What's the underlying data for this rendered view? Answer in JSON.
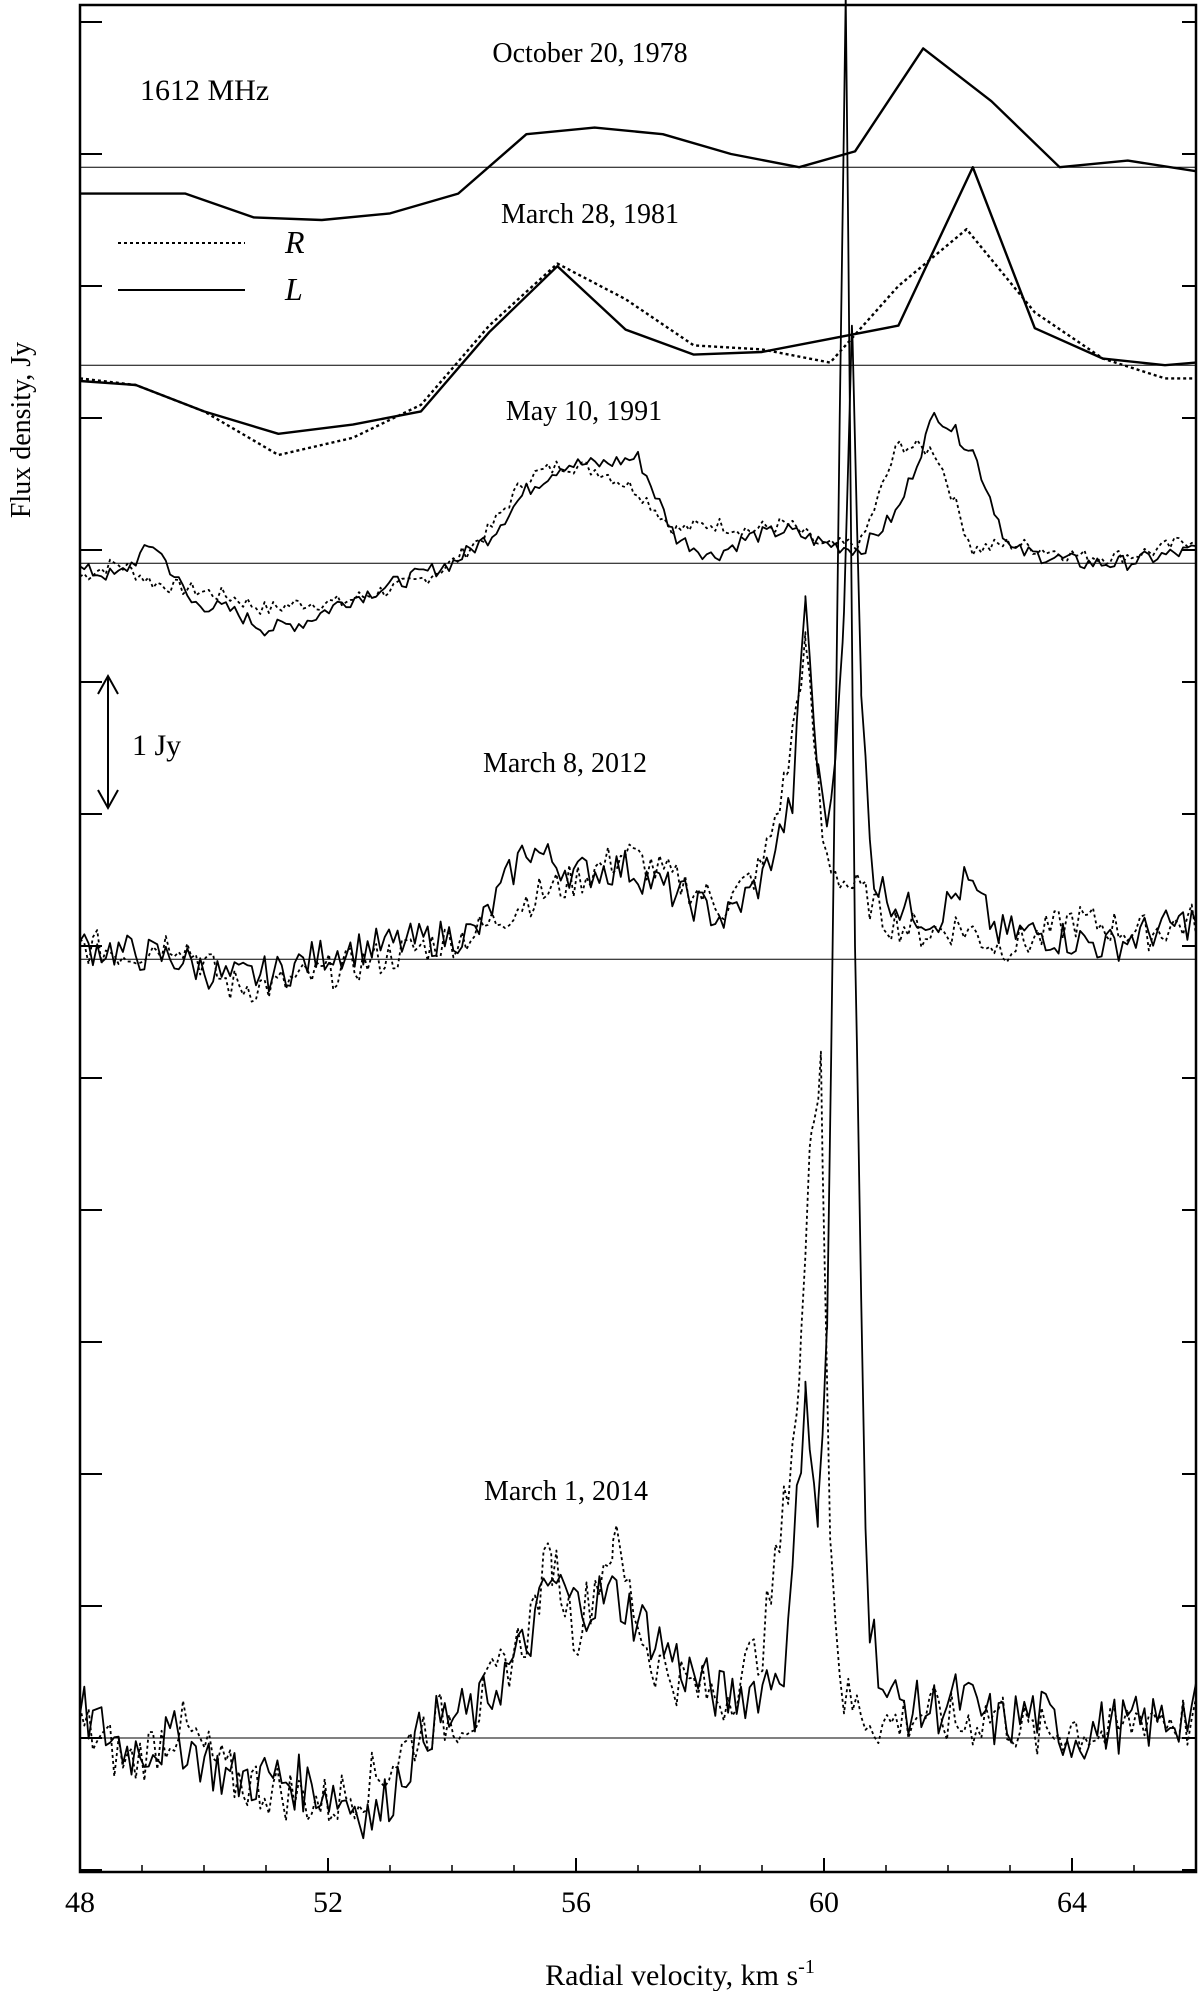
{
  "chart_data": {
    "type": "line",
    "frequency_label": "1612 MHz",
    "xlabel": "Radial velocity, km s",
    "xlabel_sup": "-1",
    "ylabel": "Flux density, Jy",
    "xlim": [
      48,
      66
    ],
    "xticks": [
      48,
      52,
      56,
      60,
      64
    ],
    "y_spacing_jy": 1,
    "scale_bar_label": "1 Jy",
    "legend": [
      {
        "name": "R",
        "style": "dotted"
      },
      {
        "name": "L",
        "style": "solid"
      }
    ],
    "epochs": [
      {
        "label": "October 20, 1978",
        "baseline_offset_jy": 11.9,
        "series": [
          {
            "name": "L",
            "x": [
              48.0,
              48.6,
              49.7,
              50.8,
              51.9,
              53.0,
              54.1,
              55.2,
              56.3,
              57.4,
              58.5,
              59.6,
              60.5,
              61.6,
              62.7,
              63.8,
              64.9,
              66.0
            ],
            "y": [
              -0.2,
              -0.2,
              -0.2,
              -0.38,
              -0.4,
              -0.35,
              -0.2,
              0.25,
              0.3,
              0.25,
              0.1,
              0.0,
              0.12,
              0.9,
              0.5,
              0.0,
              0.05,
              -0.03
            ]
          }
        ]
      },
      {
        "label": "March 28, 1981",
        "baseline_offset_jy": 10.4,
        "series": [
          {
            "name": "R",
            "x": [
              48.0,
              48.9,
              50.0,
              51.2,
              52.4,
              53.5,
              54.6,
              55.7,
              56.8,
              57.9,
              59.0,
              60.1,
              61.2,
              62.3,
              63.4,
              64.5,
              65.5,
              66.0
            ],
            "y": [
              -0.1,
              -0.15,
              -0.35,
              -0.68,
              -0.55,
              -0.3,
              0.3,
              0.77,
              0.5,
              0.15,
              0.12,
              0.02,
              0.6,
              1.03,
              0.4,
              0.05,
              -0.1,
              -0.1
            ]
          },
          {
            "name": "L",
            "x": [
              48.0,
              48.9,
              50.0,
              51.2,
              52.4,
              53.5,
              54.6,
              55.7,
              56.8,
              57.9,
              59.0,
              60.1,
              61.2,
              62.4,
              63.4,
              64.5,
              65.5,
              66.0
            ],
            "y": [
              -0.12,
              -0.15,
              -0.35,
              -0.52,
              -0.45,
              -0.35,
              0.25,
              0.75,
              0.27,
              0.08,
              0.1,
              0.2,
              0.3,
              1.5,
              0.28,
              0.05,
              0.0,
              0.02
            ]
          }
        ]
      },
      {
        "label": "May 10, 1991",
        "baseline_offset_jy": 8.9,
        "series": [
          {
            "name": "R",
            "x": [
              48.0,
              48.6,
              49.2,
              49.8,
              50.4,
              51.0,
              51.6,
              52.2,
              52.8,
              53.4,
              54.0,
              54.6,
              55.2,
              55.8,
              56.4,
              57.0,
              57.6,
              58.2,
              58.8,
              59.4,
              60.0,
              60.6,
              61.2,
              61.8,
              62.4,
              63.0,
              63.6,
              64.2,
              64.8,
              65.4,
              66.0
            ],
            "y": [
              -0.1,
              0.0,
              -0.15,
              -0.2,
              -0.25,
              -0.35,
              -0.3,
              -0.3,
              -0.22,
              -0.15,
              0.0,
              0.25,
              0.65,
              0.75,
              0.7,
              0.55,
              0.25,
              0.3,
              0.25,
              0.3,
              0.12,
              0.15,
              0.9,
              0.85,
              0.1,
              0.15,
              0.1,
              0.05,
              0.05,
              0.1,
              0.2
            ]
          },
          {
            "name": "L",
            "x": [
              48.0,
              48.6,
              49.2,
              49.8,
              50.4,
              51.0,
              51.6,
              52.2,
              52.8,
              53.4,
              54.0,
              54.6,
              55.2,
              55.8,
              56.4,
              57.0,
              57.6,
              58.2,
              58.8,
              59.4,
              60.0,
              60.6,
              61.2,
              61.8,
              62.4,
              63.0,
              63.6,
              64.2,
              64.8,
              65.4,
              66.0
            ],
            "y": [
              -0.05,
              -0.1,
              0.15,
              -0.3,
              -0.35,
              -0.5,
              -0.45,
              -0.3,
              -0.2,
              -0.1,
              0.0,
              0.2,
              0.55,
              0.75,
              0.75,
              0.8,
              0.2,
              0.05,
              0.2,
              0.25,
              0.15,
              0.1,
              0.4,
              1.15,
              0.85,
              0.1,
              0.05,
              0.0,
              0.0,
              0.05,
              0.1
            ]
          }
        ]
      },
      {
        "label": "March 8, 2012",
        "baseline_offset_jy": 5.9,
        "series": [
          {
            "name": "R",
            "x": [
              48.0,
              48.8,
              49.6,
              50.4,
              51.2,
              52.0,
              52.8,
              53.6,
              54.4,
              55.2,
              56.0,
              56.8,
              57.6,
              58.4,
              59.0,
              59.4,
              59.7,
              60.0,
              60.3,
              60.6,
              61.0,
              61.6,
              62.2,
              62.8,
              63.4,
              64.0,
              64.6,
              65.2,
              66.0
            ],
            "y": [
              0.1,
              0.05,
              0.15,
              -0.2,
              -0.2,
              -0.1,
              0.0,
              0.1,
              0.2,
              0.45,
              0.6,
              0.8,
              0.6,
              0.4,
              0.7,
              1.4,
              2.4,
              0.8,
              0.6,
              0.5,
              0.3,
              0.2,
              0.25,
              0.1,
              0.15,
              0.3,
              0.25,
              0.2,
              0.3
            ]
          },
          {
            "name": "L",
            "x": [
              48.0,
              48.8,
              49.6,
              50.4,
              51.2,
              52.0,
              52.8,
              53.6,
              54.4,
              55.2,
              56.0,
              56.8,
              57.6,
              58.4,
              59.0,
              59.5,
              59.7,
              59.9,
              60.1,
              60.3,
              60.45,
              60.6,
              60.8,
              61.2,
              61.8,
              62.3,
              62.8,
              63.4,
              64.0,
              64.6,
              65.2,
              66.0
            ],
            "y": [
              0.1,
              0.05,
              0.0,
              -0.15,
              -0.1,
              0.05,
              0.1,
              0.15,
              0.2,
              0.85,
              0.65,
              0.7,
              0.5,
              0.3,
              0.6,
              1.2,
              2.75,
              1.4,
              1.0,
              2.4,
              4.8,
              2.0,
              0.6,
              0.4,
              0.3,
              0.6,
              0.2,
              0.2,
              0.15,
              0.1,
              0.2,
              0.3
            ]
          }
        ]
      },
      {
        "label": "March 1, 2014",
        "baseline_offset_jy": 0.0,
        "series": [
          {
            "name": "R",
            "x": [
              48.0,
              48.8,
              49.6,
              50.4,
              51.2,
              52.0,
              52.8,
              53.6,
              54.4,
              55.2,
              55.6,
              56.0,
              56.6,
              57.2,
              57.8,
              58.4,
              59.0,
              59.3,
              59.6,
              59.8,
              59.95,
              60.1,
              60.3,
              60.6,
              61.0,
              61.6,
              62.2,
              62.8,
              63.4,
              64.0,
              64.6,
              65.2,
              66.0
            ],
            "y": [
              0.1,
              -0.2,
              0.1,
              -0.3,
              -0.4,
              -0.5,
              -0.3,
              0.1,
              0.2,
              0.8,
              1.4,
              0.8,
              1.5,
              0.6,
              0.4,
              0.3,
              0.7,
              1.5,
              2.7,
              4.6,
              5.2,
              1.5,
              0.3,
              0.2,
              0.1,
              0.2,
              0.1,
              0.2,
              0.0,
              0.1,
              0.0,
              0.2,
              0.1
            ]
          },
          {
            "name": "L",
            "x": [
              48.0,
              48.8,
              49.6,
              50.4,
              51.2,
              52.0,
              52.8,
              53.6,
              54.4,
              55.2,
              55.6,
              56.0,
              56.6,
              57.2,
              57.8,
              58.4,
              59.0,
              59.4,
              59.7,
              59.9,
              60.05,
              60.2,
              60.35,
              60.5,
              60.7,
              61.0,
              61.6,
              62.2,
              62.8,
              63.4,
              64.0,
              64.6,
              65.2,
              66.0
            ],
            "y": [
              0.2,
              -0.1,
              0.0,
              -0.3,
              -0.3,
              -0.4,
              -0.6,
              0.1,
              0.2,
              0.7,
              1.2,
              1.0,
              1.1,
              0.8,
              0.5,
              0.3,
              0.4,
              0.6,
              2.7,
              1.6,
              3.1,
              8.0,
              13.2,
              6.0,
              1.0,
              0.3,
              0.2,
              0.3,
              0.1,
              0.2,
              0.0,
              0.1,
              0.1,
              0.2
            ]
          }
        ]
      }
    ]
  }
}
